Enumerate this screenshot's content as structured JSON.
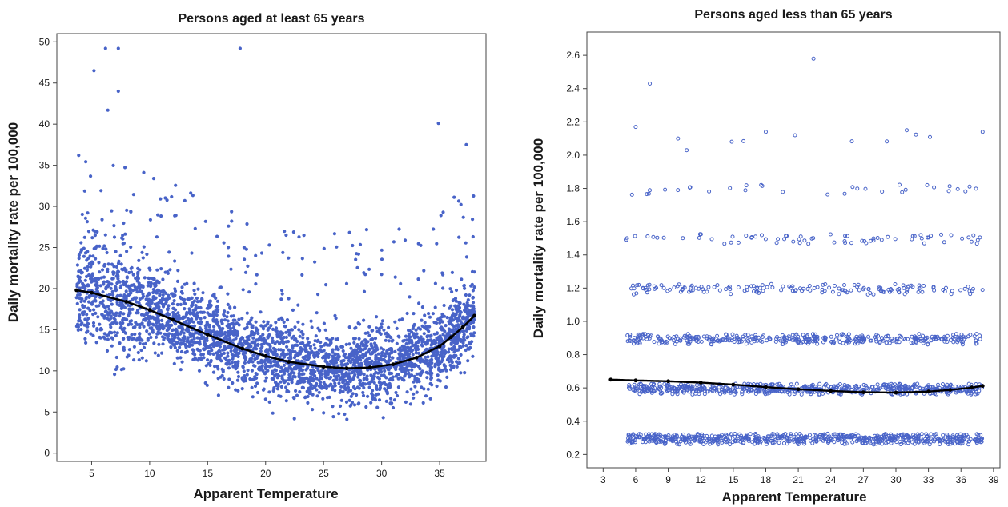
{
  "chart_data": [
    {
      "type": "scatter",
      "title": "Persons aged at least 65 years",
      "xlabel": "Apparent Temperature",
      "ylabel": "Daily mortality rate per 100,000",
      "xlim": [
        2,
        39
      ],
      "ylim": [
        -1,
        51
      ],
      "xticks": [
        5,
        10,
        15,
        20,
        25,
        30,
        35
      ],
      "yticks": [
        0,
        5,
        10,
        15,
        20,
        25,
        30,
        35,
        40,
        45,
        50
      ],
      "marker": "filled-circle",
      "point_color": "#4863c8",
      "fit_color": "#000000",
      "grid": false,
      "fit_curve": {
        "x": [
          3.7,
          5,
          8,
          10,
          12,
          15,
          18,
          20,
          22,
          25,
          27,
          29,
          31,
          33,
          35,
          36,
          37,
          38
        ],
        "y": [
          19.8,
          19.5,
          18.4,
          17.4,
          16.2,
          14.4,
          12.7,
          11.8,
          11.1,
          10.5,
          10.3,
          10.4,
          10.8,
          11.6,
          13.0,
          14.1,
          15.3,
          16.7
        ]
      },
      "notable_points": {
        "x": [
          5.2,
          6.2,
          7.3,
          7.3,
          6.4,
          17.8,
          34.9,
          37.3
        ],
        "y": [
          46.5,
          49.2,
          49.2,
          44.0,
          41.7,
          49.2,
          40.1,
          37.5
        ]
      }
    },
    {
      "type": "scatter",
      "title": "Persons aged less than 65 years",
      "xlabel": "Apparent Temperature",
      "ylabel": "Daily mortality rate per 100,000",
      "xlim": [
        1.5,
        39.6
      ],
      "ylim": [
        0.12,
        2.74
      ],
      "xticks": [
        3,
        6,
        9,
        12,
        15,
        18,
        21,
        24,
        27,
        30,
        33,
        36,
        39
      ],
      "yticks": [
        0.2,
        0.4,
        0.6,
        0.8,
        1.0,
        1.2,
        1.4,
        1.6,
        1.8,
        2.0,
        2.2,
        2.4,
        2.6
      ],
      "marker": "hollow-circle",
      "point_color": "#4863c8",
      "fit_color": "#000000",
      "grid": false,
      "bands": [
        0.3,
        0.6,
        0.9,
        1.2,
        1.5,
        1.8,
        2.1
      ],
      "fit_curve": {
        "x": [
          3.7,
          6,
          9,
          12,
          15,
          18,
          21,
          24,
          27,
          30,
          33,
          35,
          37,
          38
        ],
        "y": [
          0.65,
          0.645,
          0.64,
          0.632,
          0.62,
          0.605,
          0.592,
          0.582,
          0.574,
          0.572,
          0.578,
          0.588,
          0.602,
          0.612
        ]
      },
      "notable_points": {
        "x": [
          22.4,
          7.3,
          6.0,
          10.7,
          9.9,
          20.7,
          18.0,
          31.0,
          38.0,
          5.2
        ],
        "y": [
          2.58,
          2.43,
          2.17,
          2.03,
          2.1,
          2.12,
          2.14,
          2.15,
          2.14,
          1.5
        ]
      }
    }
  ]
}
